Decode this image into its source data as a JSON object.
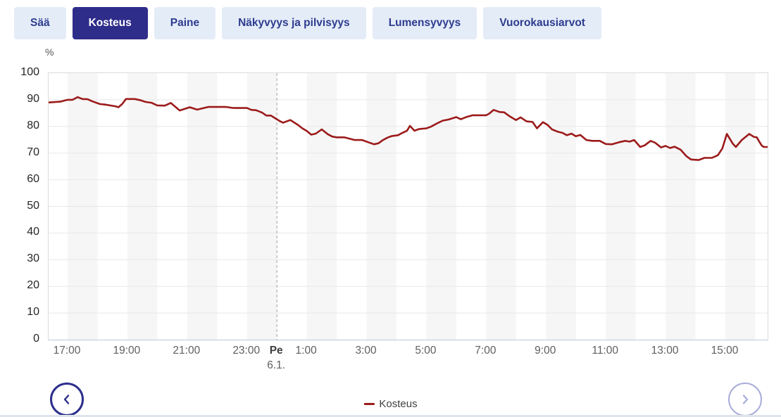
{
  "tabs": [
    {
      "id": "saa",
      "label": "Sää",
      "active": false
    },
    {
      "id": "kosteus",
      "label": "Kosteus",
      "active": true
    },
    {
      "id": "paine",
      "label": "Paine",
      "active": false
    },
    {
      "id": "nakyvyys-ja-pilvisyys",
      "label": "Näkyvyys ja pilvisyys",
      "active": false
    },
    {
      "id": "lumensyvyys",
      "label": "Lumensyvyys",
      "active": false
    },
    {
      "id": "vuorokausiarvot",
      "label": "Vuorokausiarvot",
      "active": false
    }
  ],
  "colors": {
    "accent_navy": "#2e2d8a",
    "tab_inactive_bg": "#e4ecf8",
    "tab_text": "#2d3c8e",
    "line_red": "#9c1b1b",
    "band_gray": "#f6f6f6",
    "gridline": "#e8e8e8",
    "day_divider": "#a3a3a3",
    "next_disabled": "#a9add9"
  },
  "legend": {
    "label": "Kosteus"
  },
  "nav": {
    "prev_label": "previous period",
    "next_label": "next period"
  },
  "chart_data": {
    "type": "line",
    "title": "Kosteus",
    "xlabel": "",
    "ylabel": "%",
    "ylim": [
      0,
      100
    ],
    "y_ticks": [
      100,
      90,
      80,
      70,
      60,
      50,
      40,
      30,
      20,
      10,
      0
    ],
    "grid": "horizontal, 1-hour alternating background bands on odd hours",
    "legend_position": "bottom-center",
    "x_ticks": [
      {
        "label": "17:00",
        "hour": 17
      },
      {
        "label": "19:00",
        "hour": 19
      },
      {
        "label": "21:00",
        "hour": 21
      },
      {
        "label": "23:00",
        "hour": 23
      },
      {
        "label": "Pe",
        "sub": "6.1.",
        "hour": 24,
        "bold": true,
        "day_divider": true
      },
      {
        "label": "1:00",
        "hour": 25
      },
      {
        "label": "3:00",
        "hour": 27
      },
      {
        "label": "5:00",
        "hour": 29
      },
      {
        "label": "7:00",
        "hour": 31
      },
      {
        "label": "9:00",
        "hour": 33
      },
      {
        "label": "11:00",
        "hour": 35
      },
      {
        "label": "13:00",
        "hour": 37
      },
      {
        "label": "15:00",
        "hour": 39
      }
    ],
    "series": [
      {
        "name": "Kosteus",
        "unit": "%",
        "color": "#9c1b1b",
        "points": [
          [
            "16:22",
            89
          ],
          [
            "16:30",
            89.1
          ],
          [
            "16:45",
            89.3
          ],
          [
            "17:00",
            90
          ],
          [
            "17:10",
            90
          ],
          [
            "17:20",
            91
          ],
          [
            "17:30",
            90.3
          ],
          [
            "17:40",
            90.2
          ],
          [
            "17:50",
            89.4
          ],
          [
            "18:05",
            88.4
          ],
          [
            "18:15",
            88.2
          ],
          [
            "18:25",
            87.9
          ],
          [
            "18:35",
            87.6
          ],
          [
            "18:42",
            87.2
          ],
          [
            "18:50",
            88.5
          ],
          [
            "18:57",
            90.3
          ],
          [
            "19:15",
            90.3
          ],
          [
            "19:27",
            89.8
          ],
          [
            "19:36",
            89.2
          ],
          [
            "19:48",
            88.9
          ],
          [
            "20:00",
            87.9
          ],
          [
            "20:15",
            87.8
          ],
          [
            "20:27",
            88.8
          ],
          [
            "20:45",
            86
          ],
          [
            "21:05",
            87.2
          ],
          [
            "21:20",
            86.3
          ],
          [
            "21:42",
            87.3
          ],
          [
            "22:18",
            87.3
          ],
          [
            "22:33",
            86.9
          ],
          [
            "23:00",
            86.9
          ],
          [
            "23:09",
            86.2
          ],
          [
            "23:18",
            86.1
          ],
          [
            "23:30",
            85.2
          ],
          [
            "23:39",
            84.1
          ],
          [
            "23:48",
            84.1
          ],
          [
            "23:57",
            83
          ],
          [
            "0:06",
            82
          ],
          [
            "0:12",
            81.4
          ],
          [
            "0:27",
            82.4
          ],
          [
            "0:42",
            80.6
          ],
          [
            "0:51",
            79.3
          ],
          [
            "1:00",
            78.3
          ],
          [
            "1:09",
            76.9
          ],
          [
            "1:18",
            77.3
          ],
          [
            "1:30",
            78.9
          ],
          [
            "1:42",
            77.1
          ],
          [
            "1:51",
            76.2
          ],
          [
            "2:00",
            75.9
          ],
          [
            "2:15",
            75.9
          ],
          [
            "2:24",
            75.5
          ],
          [
            "2:36",
            74.9
          ],
          [
            "2:51",
            74.9
          ],
          [
            "3:03",
            74.1
          ],
          [
            "3:15",
            73.3
          ],
          [
            "3:24",
            73.7
          ],
          [
            "3:33",
            74.9
          ],
          [
            "3:42",
            75.8
          ],
          [
            "3:51",
            76.4
          ],
          [
            "4:03",
            76.7
          ],
          [
            "4:12",
            77.6
          ],
          [
            "4:21",
            78.4
          ],
          [
            "4:27",
            80.2
          ],
          [
            "4:36",
            78.4
          ],
          [
            "4:45",
            79
          ],
          [
            "5:00",
            79.3
          ],
          [
            "5:09",
            79.9
          ],
          [
            "5:21",
            81.1
          ],
          [
            "5:33",
            82.2
          ],
          [
            "5:45",
            82.6
          ],
          [
            "6:00",
            83.5
          ],
          [
            "6:09",
            82.7
          ],
          [
            "6:21",
            83.6
          ],
          [
            "6:33",
            84.2
          ],
          [
            "7:00",
            84.2
          ],
          [
            "7:06",
            84.8
          ],
          [
            "7:15",
            86.2
          ],
          [
            "7:27",
            85.4
          ],
          [
            "7:36",
            85.3
          ],
          [
            "7:48",
            83.7
          ],
          [
            "8:00",
            82.4
          ],
          [
            "8:09",
            83.4
          ],
          [
            "8:21",
            81.9
          ],
          [
            "8:33",
            81.7
          ],
          [
            "8:42",
            79.3
          ],
          [
            "8:54",
            81.6
          ],
          [
            "9:03",
            80.6
          ],
          [
            "9:12",
            78.9
          ],
          [
            "9:24",
            78
          ],
          [
            "9:33",
            77.6
          ],
          [
            "9:42",
            76.7
          ],
          [
            "9:51",
            77.3
          ],
          [
            "10:00",
            76.3
          ],
          [
            "10:09",
            76.8
          ],
          [
            "10:21",
            74.9
          ],
          [
            "10:33",
            74.6
          ],
          [
            "10:48",
            74.6
          ],
          [
            "11:00",
            73.4
          ],
          [
            "11:12",
            73.3
          ],
          [
            "11:27",
            74.1
          ],
          [
            "11:39",
            74.6
          ],
          [
            "11:48",
            74.3
          ],
          [
            "11:57",
            74.9
          ],
          [
            "12:09",
            72.3
          ],
          [
            "12:18",
            72.9
          ],
          [
            "12:30",
            74.6
          ],
          [
            "12:39",
            73.9
          ],
          [
            "12:51",
            72.1
          ],
          [
            "13:00",
            72.7
          ],
          [
            "13:09",
            71.9
          ],
          [
            "13:18",
            72.4
          ],
          [
            "13:30",
            71.3
          ],
          [
            "13:42",
            68.8
          ],
          [
            "13:51",
            67.6
          ],
          [
            "14:06",
            67.4
          ],
          [
            "14:18",
            68.2
          ],
          [
            "14:33",
            68.2
          ],
          [
            "14:45",
            69.2
          ],
          [
            "14:54",
            71.8
          ],
          [
            "15:03",
            77.2
          ],
          [
            "15:15",
            73.5
          ],
          [
            "15:21",
            72.3
          ],
          [
            "15:33",
            74.9
          ],
          [
            "15:48",
            77.2
          ],
          [
            "15:57",
            76.1
          ],
          [
            "16:03",
            75.9
          ],
          [
            "16:09",
            74
          ],
          [
            "16:13",
            72.8
          ],
          [
            "16:17",
            72.3
          ],
          [
            "16:27",
            72.3
          ]
        ]
      }
    ]
  }
}
